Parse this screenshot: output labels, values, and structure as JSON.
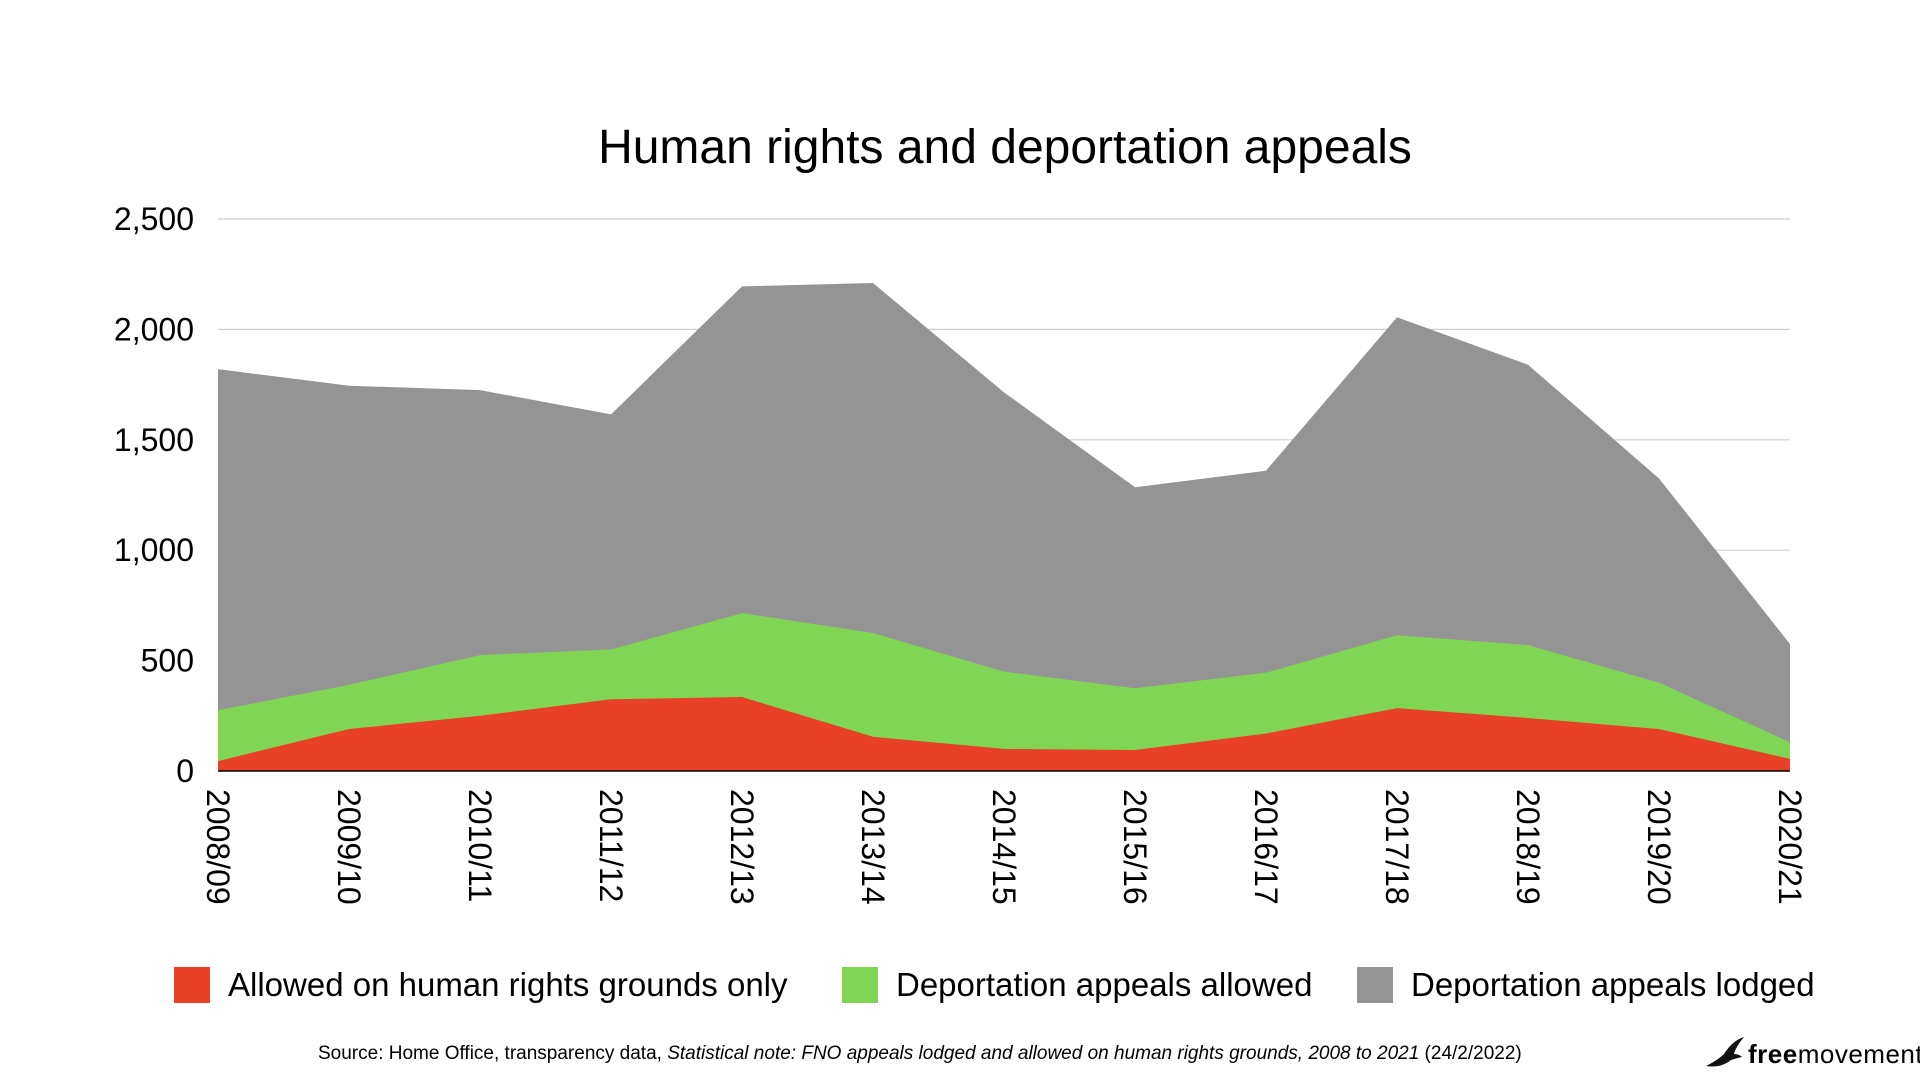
{
  "chart_data": {
    "type": "area",
    "stacking": "overlay",
    "title": "Human rights and deportation appeals",
    "categories": [
      "2008/09",
      "2009/10",
      "2010/11",
      "2011/12",
      "2012/13",
      "2013/14",
      "2014/15",
      "2015/16",
      "2016/17",
      "2017/18",
      "2018/19",
      "2019/20",
      "2020/21"
    ],
    "series": [
      {
        "name": "Deportation appeals lodged",
        "color": "#949494",
        "values": [
          1820,
          1745,
          1725,
          1615,
          2195,
          2210,
          1715,
          1285,
          1360,
          2055,
          1840,
          1325,
          575
        ]
      },
      {
        "name": "Deportation appeals allowed",
        "color": "#80d654",
        "values": [
          275,
          390,
          525,
          550,
          715,
          625,
          450,
          375,
          445,
          615,
          570,
          400,
          130
        ]
      },
      {
        "name": "Allowed on human rights grounds only",
        "color": "#e84127",
        "values": [
          45,
          190,
          250,
          325,
          335,
          155,
          100,
          95,
          170,
          285,
          240,
          190,
          55
        ]
      }
    ],
    "ylim": [
      0,
      2500
    ],
    "yticks": [
      0,
      500,
      1000,
      1500,
      2000,
      2500
    ],
    "ytick_labels": [
      "0",
      "500",
      "1,000",
      "1,500",
      "2,000",
      "2,500"
    ],
    "grid": true,
    "legend_position": "bottom"
  },
  "legend": [
    {
      "label": "Allowed on human rights grounds only",
      "color": "#e84127"
    },
    {
      "label": "Deportation appeals allowed",
      "color": "#80d654"
    },
    {
      "label": "Deportation appeals lodged",
      "color": "#949494"
    }
  ],
  "source": {
    "prefix": "Source: Home Office, transparency data, ",
    "italic": "Statistical note: FNO appeals lodged and allowed on human rights grounds, 2008 to 2021",
    "suffix": " (24/2/2022)"
  },
  "logo": {
    "bold": "free",
    "regular": "movement",
    "icon": "bird-icon"
  }
}
